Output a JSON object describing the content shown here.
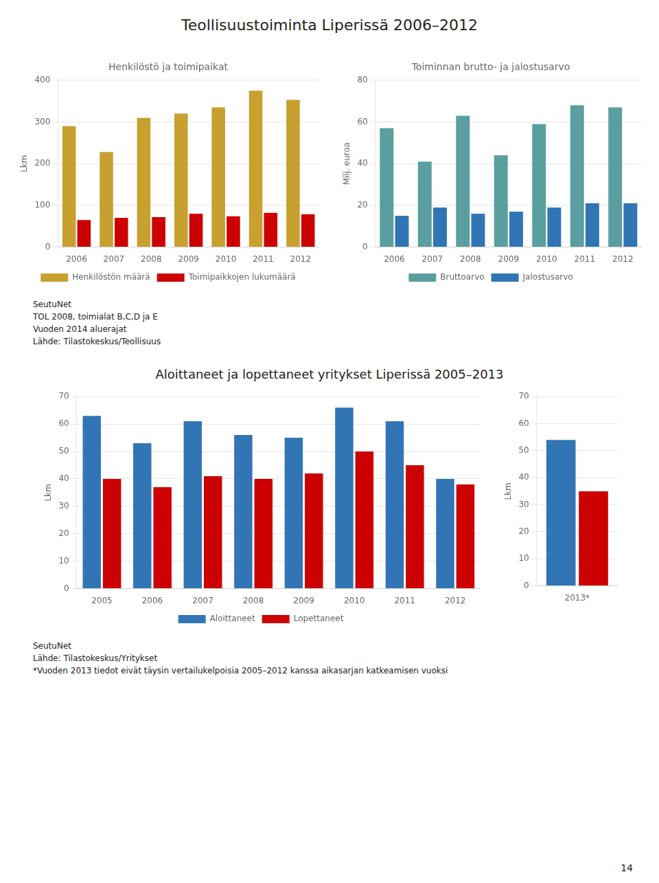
{
  "title": "Teollisuustoiminta Liperissä 2006–2012",
  "annotations": [
    "14"
  ],
  "chart_data": [
    {
      "type": "bar",
      "title": "Henkilöstö ja toimipaikat",
      "ylabel": "Lkm",
      "categories": [
        "2006",
        "2007",
        "2008",
        "2009",
        "2010",
        "2011",
        "2012"
      ],
      "series": [
        {
          "name": "Henkilöstön määrä",
          "color": "#C8A030",
          "values": [
            290,
            228,
            310,
            320,
            335,
            375,
            353
          ]
        },
        {
          "name": "Toimipaikkojen lukumäärä",
          "color": "#CC0000",
          "values": [
            65,
            70,
            72,
            80,
            74,
            82,
            79
          ]
        }
      ],
      "ylim": [
        0,
        400
      ],
      "yticks": [
        0,
        100,
        200,
        300,
        400
      ],
      "grid": true,
      "legend": "bottom",
      "annotations": [
        "SeutuNet",
        "TOL 2008, toimialat B,C,D ja E",
        "Vuoden 2014 aluerajat",
        "Lähde: Tilastokeskus/Teollisuus"
      ]
    },
    {
      "type": "bar",
      "title": "Toiminnan brutto- ja jalostusarvo",
      "ylabel": "Milj. euroa",
      "categories": [
        "2006",
        "2007",
        "2008",
        "2009",
        "2010",
        "2011",
        "2012"
      ],
      "series": [
        {
          "name": "Bruttoarvo",
          "color": "#5B9EA0",
          "values": [
            57,
            41,
            63,
            44,
            59,
            68,
            67
          ]
        },
        {
          "name": "Jalostusarvo",
          "color": "#3275B5",
          "values": [
            15,
            19,
            16,
            17,
            19,
            21,
            21
          ]
        }
      ],
      "ylim": [
        0,
        80
      ],
      "yticks": [
        0,
        20,
        40,
        60,
        80
      ],
      "grid": true,
      "legend": "bottom"
    },
    {
      "type": "bar",
      "title": "Aloittaneet ja lopettaneet yritykset Liperissä 2005–2013",
      "ylabel": "Lkm",
      "categories": [
        "2005",
        "2006",
        "2007",
        "2008",
        "2009",
        "2010",
        "2011",
        "2012"
      ],
      "series": [
        {
          "name": "Aloittaneet",
          "color": "#3275B5",
          "values": [
            63,
            53,
            61,
            56,
            55,
            66,
            61,
            40
          ]
        },
        {
          "name": "Lopettaneet",
          "color": "#CC0000",
          "values": [
            40,
            37,
            41,
            40,
            42,
            50,
            45,
            38
          ]
        }
      ],
      "ylim": [
        0,
        70
      ],
      "yticks": [
        0,
        10,
        20,
        30,
        40,
        50,
        60,
        70
      ],
      "grid": true,
      "legend": "bottom",
      "annotations": [
        "SeutuNet",
        "Lähde: Tilastokeskus/Yritykset",
        "*Vuoden 2013 tiedot eivät täysin vertailukelpoisia 2005–2012 kanssa aikasarjan katkeamisen vuoksi"
      ]
    },
    {
      "type": "bar",
      "ylabel": "Lkm",
      "categories": [
        "2013*"
      ],
      "series": [
        {
          "name": "Aloittaneet",
          "color": "#3275B5",
          "values": [
            54
          ]
        },
        {
          "name": "Lopettaneet",
          "color": "#CC0000",
          "values": [
            35
          ]
        }
      ],
      "ylim": [
        0,
        70
      ],
      "yticks": [
        0,
        10,
        20,
        30,
        40,
        50,
        60,
        70
      ],
      "grid": true
    }
  ]
}
